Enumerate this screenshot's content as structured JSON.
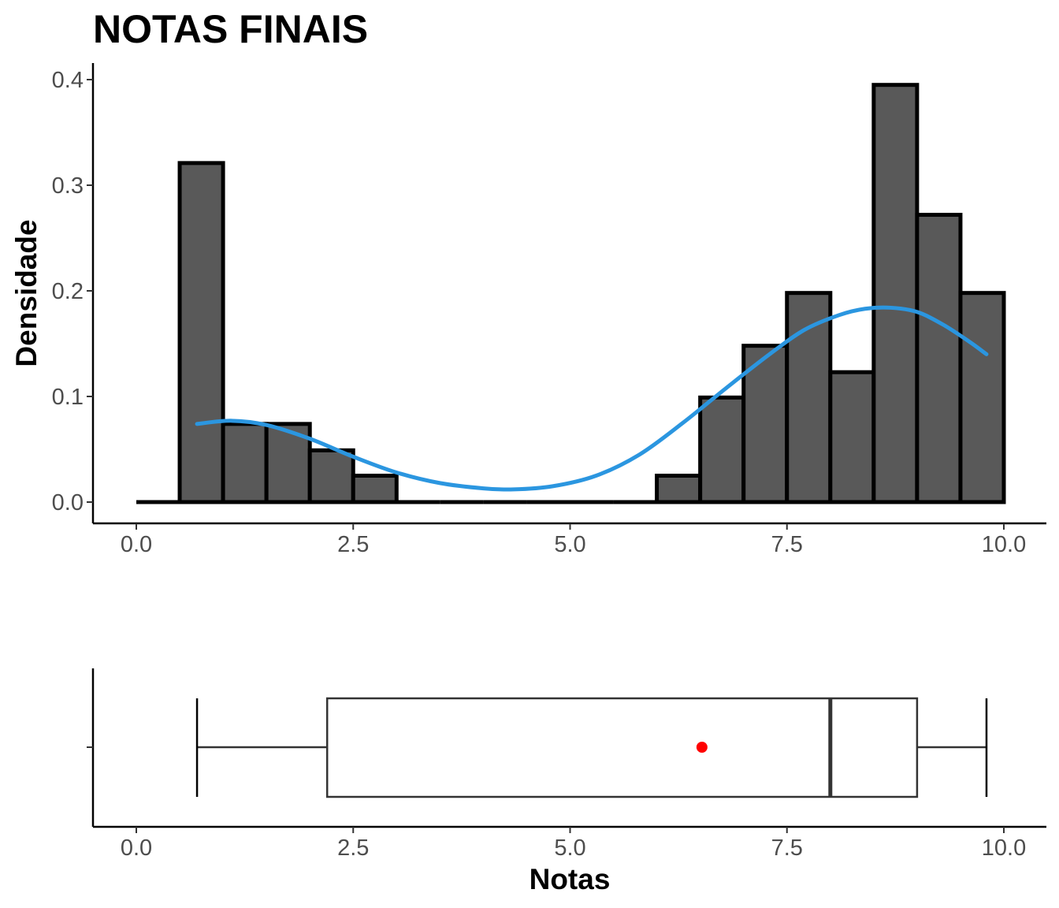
{
  "chart_data": [
    {
      "type": "histogram",
      "title": "NOTAS FINAIS",
      "xlabel": "",
      "ylabel": "Densidade",
      "xlim": [
        -0.25,
        10.25
      ],
      "ylim": [
        -0.02,
        0.42
      ],
      "x_ticks": [
        "0.0",
        "2.5",
        "5.0",
        "7.5",
        "10.0"
      ],
      "y_ticks": [
        "0.0",
        "0.1",
        "0.2",
        "0.3",
        "0.4"
      ],
      "bin_width": 0.5,
      "bin_starts": [
        0.0,
        0.5,
        1.0,
        1.5,
        2.0,
        2.5,
        3.0,
        3.5,
        4.0,
        4.5,
        5.0,
        5.5,
        6.0,
        6.5,
        7.0,
        7.5,
        8.0,
        8.5,
        9.0,
        9.5
      ],
      "densities": [
        0.0,
        0.321,
        0.074,
        0.074,
        0.049,
        0.025,
        0.0,
        0.0,
        0.0,
        0.0,
        0.0,
        0.0,
        0.025,
        0.099,
        0.148,
        0.198,
        0.123,
        0.395,
        0.272,
        0.198
      ],
      "bar_color": "#595959",
      "bar_border": "#000000",
      "density_curve": {
        "color": "#2b96e0",
        "x": [
          0.7,
          1.1,
          1.5,
          2.0,
          2.5,
          3.0,
          3.5,
          4.0,
          4.35,
          4.8,
          5.3,
          5.8,
          6.3,
          6.8,
          7.3,
          7.7,
          8.1,
          8.4,
          8.7,
          9.0,
          9.3,
          9.6,
          9.8
        ],
        "y": [
          0.074,
          0.077,
          0.073,
          0.06,
          0.043,
          0.028,
          0.018,
          0.013,
          0.012,
          0.015,
          0.025,
          0.045,
          0.075,
          0.108,
          0.14,
          0.163,
          0.177,
          0.183,
          0.184,
          0.18,
          0.168,
          0.152,
          0.14
        ]
      }
    },
    {
      "type": "boxplot",
      "xlabel": "Notas",
      "xlim": [
        -0.25,
        10.25
      ],
      "x_ticks": [
        "0.0",
        "2.5",
        "5.0",
        "7.5",
        "10.0"
      ],
      "whisker_low": 0.7,
      "q1": 2.2,
      "median": 8.0,
      "q3": 9.0,
      "whisker_high": 9.8,
      "mean": 6.52,
      "mean_color": "#ff0000",
      "box_color": "#333333"
    }
  ]
}
